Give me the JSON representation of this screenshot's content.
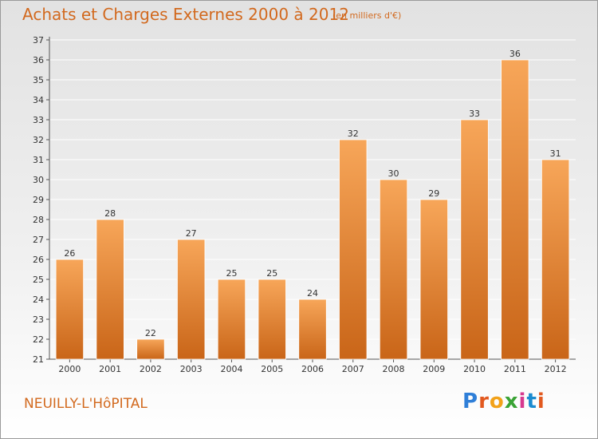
{
  "header": {
    "title": "Achats et Charges Externes 2000 à 2012",
    "subtitle": "(en milliers d'€)"
  },
  "footer": {
    "place": "NEUILLY-L'HôPITAL",
    "logo_text": "Proxiti",
    "logo_colors": [
      "#2f7fd8",
      "#e2591f",
      "#f2a21a",
      "#3aa335",
      "#d63a8f",
      "#1b8bd0",
      "#e2591f"
    ]
  },
  "colors": {
    "bar_top": "#f7a659",
    "bar_bottom": "#c96518",
    "grid": "#ffffff"
  },
  "chart_data": {
    "type": "bar",
    "title": "Achats et Charges Externes 2000 à 2012",
    "subtitle": "(en milliers d'€)",
    "categories": [
      "2000",
      "2001",
      "2002",
      "2003",
      "2004",
      "2005",
      "2006",
      "2007",
      "2008",
      "2009",
      "2010",
      "2011",
      "2012"
    ],
    "values": [
      26,
      28,
      22,
      27,
      25,
      25,
      24,
      32,
      30,
      29,
      33,
      36,
      31
    ],
    "ylim": [
      21,
      37
    ],
    "yticks": [
      21,
      22,
      23,
      24,
      25,
      26,
      27,
      28,
      29,
      30,
      31,
      32,
      33,
      34,
      35,
      36,
      37
    ],
    "grid": true,
    "xlabel": "",
    "ylabel": ""
  }
}
